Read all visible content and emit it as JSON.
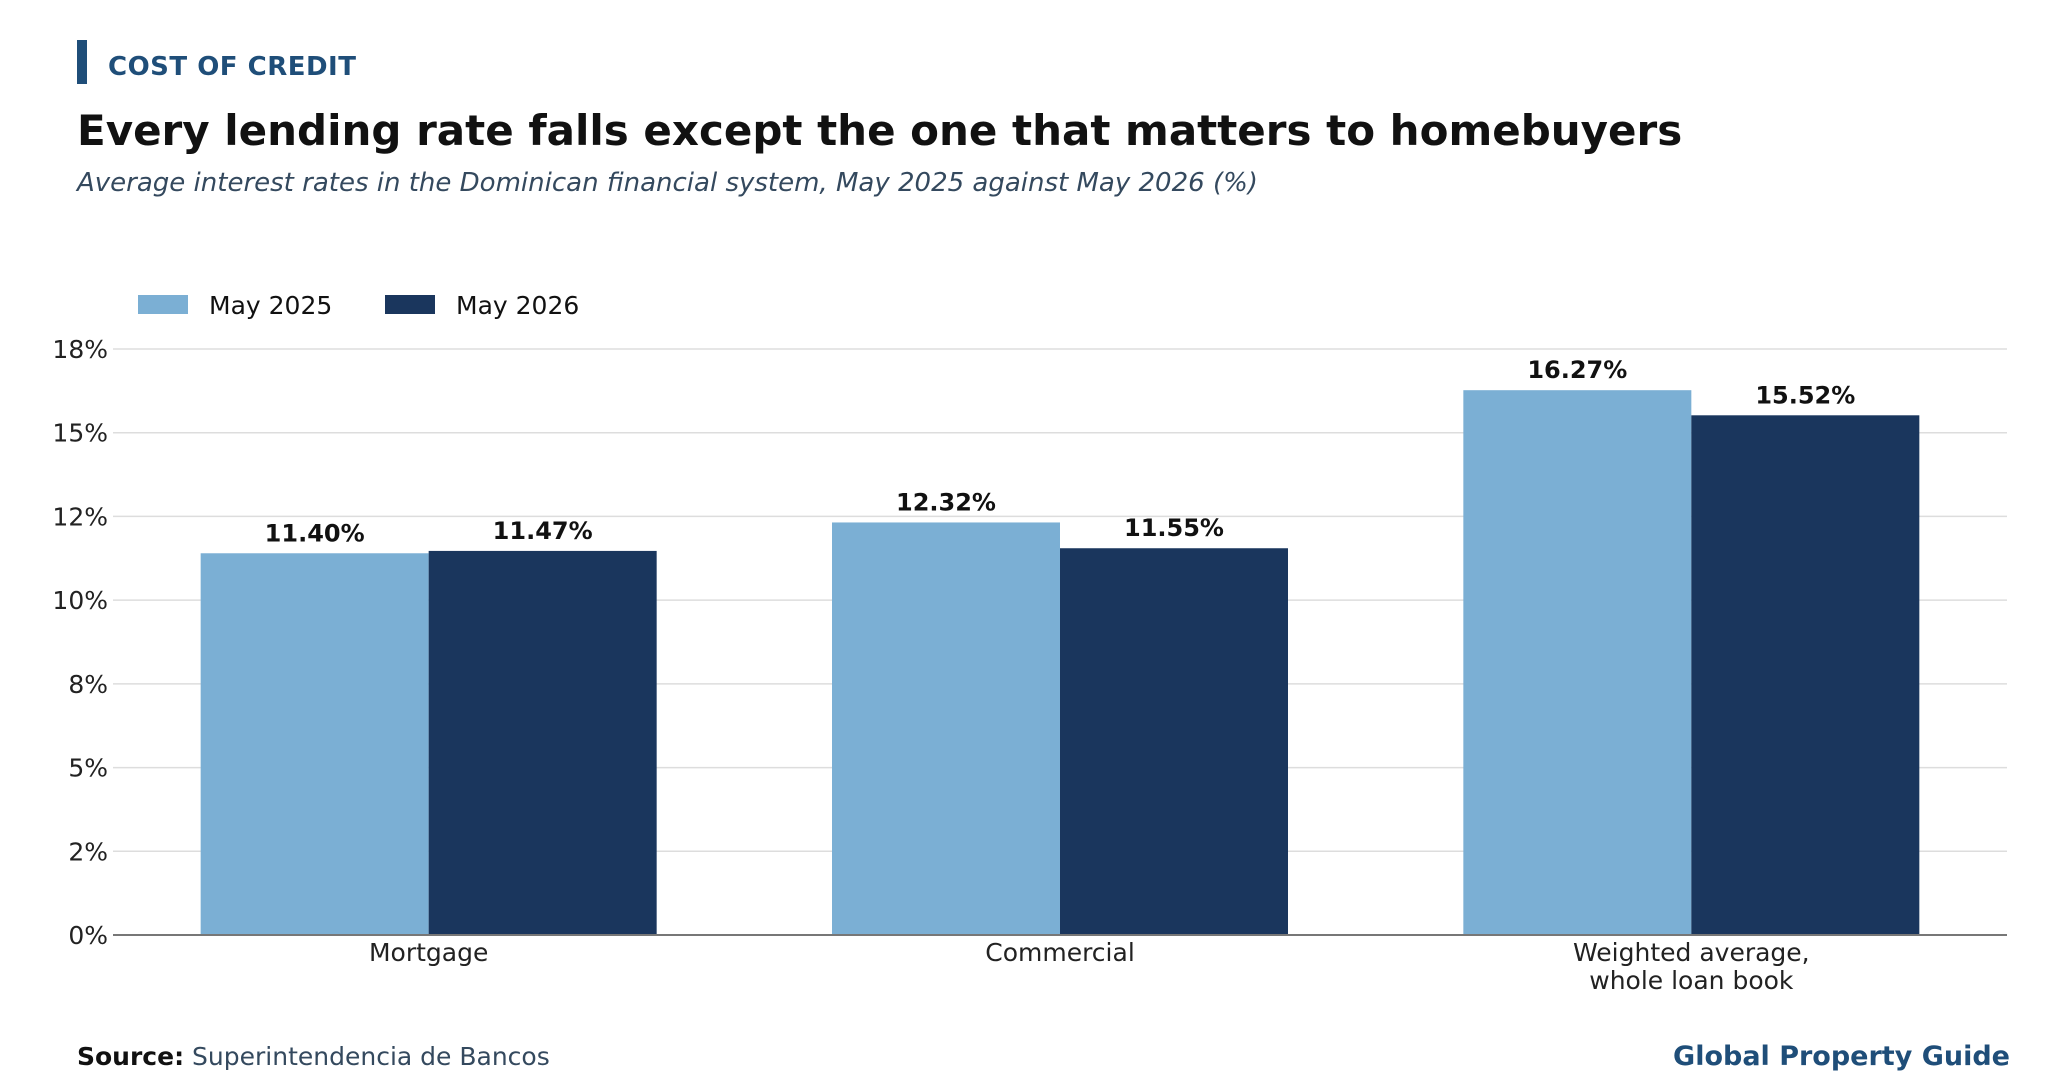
{
  "header": {
    "kicker": "COST OF CREDIT",
    "title": "Every lending rate falls except the one that matters to homebuyers",
    "subtitle": "Average interest rates in the Dominican financial system, May 2025 against May 2026 (%)"
  },
  "footer": {
    "source_label": "Source:",
    "source_text": "Superintendencia de Bancos",
    "brand": "Global Property Guide"
  },
  "colors": {
    "kicker": "#1f4e79",
    "series_2025": "#7bafd4",
    "series_2026": "#1a365d"
  },
  "chart_data": {
    "type": "bar",
    "categories": [
      [
        "Mortgage"
      ],
      [
        "Commercial"
      ],
      [
        "Weighted average,",
        "whole loan book"
      ]
    ],
    "series": [
      {
        "name": "May 2025",
        "values": [
          11.4,
          12.32,
          16.27
        ],
        "labels": [
          "11.40%",
          "12.32%",
          "16.27%"
        ],
        "color": "#7bafd4"
      },
      {
        "name": "May 2026",
        "values": [
          11.47,
          11.55,
          15.52
        ],
        "labels": [
          "11.47%",
          "11.55%",
          "15.52%"
        ],
        "color": "#1a365d"
      }
    ],
    "ylim": [
      0,
      17.5
    ],
    "yticks": [
      0,
      2.5,
      5,
      7.5,
      10,
      12.5,
      15,
      17.5
    ],
    "ytick_labels": [
      "0%",
      "2%",
      "5%",
      "8%",
      "10%",
      "12%",
      "15%",
      "18%"
    ],
    "grid": true,
    "legend": "top-left"
  }
}
